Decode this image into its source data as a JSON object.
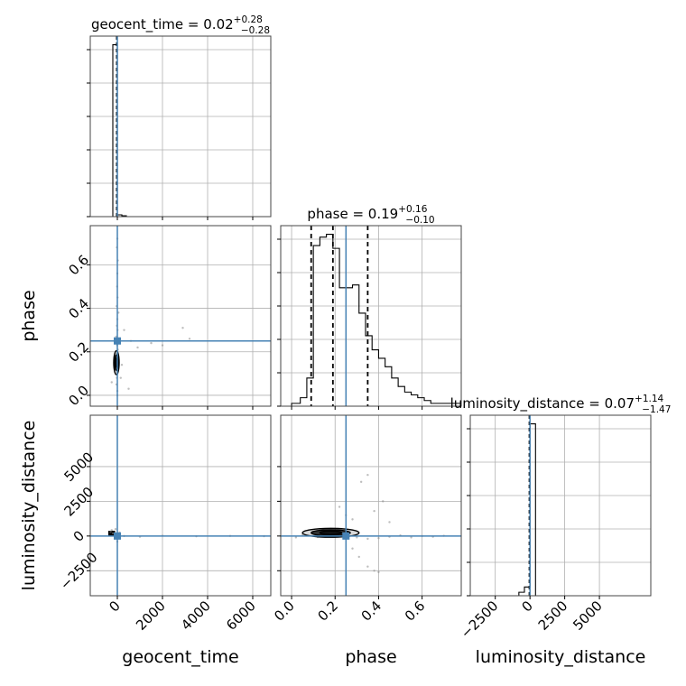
{
  "chart_data": {
    "type": "corner",
    "grid": true,
    "truth_color": "#4682b4",
    "histogram_color": "#000000",
    "parameters": [
      {
        "name": "geocent_time",
        "xlabel": "geocent_time",
        "title": {
          "main": "geocent_time = 0.02",
          "sup": "+0.28",
          "sub": "−0.28"
        },
        "truth": 0,
        "range": [
          -1200,
          6800
        ],
        "ticks": [
          0,
          2000,
          4000,
          6000
        ],
        "tick_labels": [
          "0",
          "2000",
          "4000",
          "6000"
        ]
      },
      {
        "name": "phase",
        "xlabel": "phase",
        "ylabel": "phase",
        "title": {
          "main": "phase = 0.19",
          "sup": "+0.16",
          "sub": "−0.10"
        },
        "truth": 0.25,
        "quantiles": [
          0.09,
          0.19,
          0.35
        ],
        "range": [
          -0.05,
          0.78
        ],
        "ticks": [
          0.0,
          0.2,
          0.4,
          0.6
        ],
        "tick_labels": [
          "0.0",
          "0.2",
          "0.4",
          "0.6"
        ]
      },
      {
        "name": "luminosity_distance",
        "xlabel": "luminosity_distance",
        "ylabel": "luminosity_distance",
        "title": {
          "main": "luminosity_distance = 0.07",
          "sup": "+1.14",
          "sub": "−1.47"
        },
        "truth": 0,
        "range": [
          -4300,
          8700
        ],
        "ticks": [
          -2500,
          0,
          2500,
          5000
        ],
        "tick_labels": [
          "−2500",
          "0",
          "2500",
          "5000"
        ]
      }
    ],
    "histograms": {
      "geocent_time": {
        "edges": [
          -400,
          -200,
          0,
          200,
          400
        ],
        "counts": [
          0,
          95,
          1,
          0.5
        ]
      },
      "phase": {
        "edges": [
          0.0,
          0.04,
          0.07,
          0.1,
          0.13,
          0.16,
          0.19,
          0.22,
          0.25,
          0.28,
          0.31,
          0.34,
          0.37,
          0.4,
          0.43,
          0.46,
          0.49,
          0.52,
          0.55,
          0.58,
          0.61,
          0.64,
          0.67,
          0.7,
          0.78
        ],
        "counts": [
          1,
          3,
          10,
          57,
          60,
          61,
          56,
          42,
          42,
          43,
          33,
          25,
          20,
          17,
          14,
          10,
          7,
          5,
          4,
          3,
          2,
          1,
          1,
          1
        ]
      },
      "luminosity_distance": {
        "edges": [
          -800,
          -400,
          0,
          400
        ],
        "counts": [
          2,
          5,
          98
        ]
      }
    },
    "samples": {
      "phase_vs_geocent_time": [
        [
          0,
          0.0
        ],
        [
          0,
          0.02
        ],
        [
          -40,
          0.05
        ],
        [
          -20,
          0.08
        ],
        [
          10,
          0.11
        ],
        [
          -60,
          0.13
        ],
        [
          40,
          0.15
        ],
        [
          0,
          0.17
        ],
        [
          -30,
          0.19
        ],
        [
          20,
          0.21
        ],
        [
          -10,
          0.23
        ],
        [
          30,
          0.25
        ],
        [
          -50,
          0.27
        ],
        [
          10,
          0.3
        ],
        [
          -20,
          0.32
        ],
        [
          0,
          0.35
        ],
        [
          50,
          0.38
        ],
        [
          -30,
          0.41
        ],
        [
          10,
          0.45
        ],
        [
          -10,
          0.5
        ],
        [
          0,
          0.56
        ],
        [
          20,
          0.62
        ],
        [
          -20,
          0.68
        ],
        [
          0,
          0.72
        ],
        [
          300,
          0.3
        ],
        [
          600,
          0.25
        ],
        [
          900,
          0.22
        ],
        [
          1500,
          0.24
        ],
        [
          2000,
          0.23
        ],
        [
          2900,
          0.31
        ],
        [
          3200,
          0.26
        ],
        [
          150,
          0.08
        ],
        [
          -250,
          0.06
        ],
        [
          200,
          0.14
        ],
        [
          500,
          0.03
        ]
      ],
      "luminosity_distance_vs_geocent_time": [
        [
          -300,
          300
        ],
        [
          -200,
          200
        ],
        [
          -100,
          100
        ],
        [
          0,
          50
        ],
        [
          60,
          -80
        ],
        [
          -40,
          -150
        ],
        [
          20,
          180
        ],
        [
          300,
          0
        ],
        [
          1000,
          -50
        ],
        [
          2000,
          20
        ],
        [
          3500,
          -20
        ],
        [
          5000,
          10
        ],
        [
          6500,
          -10
        ],
        [
          0,
          -400
        ],
        [
          -80,
          500
        ],
        [
          100,
          250
        ],
        [
          -250,
          420
        ]
      ],
      "luminosity_distance_vs_phase": [
        [
          0.1,
          300
        ],
        [
          0.15,
          200
        ],
        [
          0.2,
          100
        ],
        [
          0.25,
          0
        ],
        [
          0.3,
          -100
        ],
        [
          0.35,
          -200
        ],
        [
          0.4,
          -150
        ],
        [
          0.45,
          -50
        ],
        [
          0.5,
          50
        ],
        [
          0.55,
          -100
        ],
        [
          0.6,
          0
        ],
        [
          0.65,
          -50
        ],
        [
          0.7,
          20
        ],
        [
          0.22,
          2100
        ],
        [
          0.25,
          1500
        ],
        [
          0.28,
          1200
        ],
        [
          0.32,
          3900
        ],
        [
          0.35,
          4400
        ],
        [
          0.38,
          1800
        ],
        [
          0.31,
          -1500
        ],
        [
          0.38,
          -2500
        ],
        [
          0.4,
          -2600
        ],
        [
          0.35,
          -2200
        ],
        [
          0.05,
          100
        ],
        [
          0.02,
          -100
        ],
        [
          0.12,
          -80
        ],
        [
          0.18,
          150
        ],
        [
          0.42,
          2500
        ],
        [
          0.28,
          -900
        ],
        [
          0.45,
          1000
        ]
      ]
    },
    "contours": {
      "phase_vs_geocent_time": {
        "center": [
          -40,
          0.15
        ],
        "levels": [
          [
            120,
            0.055
          ],
          [
            80,
            0.035
          ],
          [
            45,
            0.02
          ]
        ]
      },
      "luminosity_distance_vs_phase": {
        "center": [
          0.18,
          230
        ],
        "levels": [
          [
            0.13,
            320
          ],
          [
            0.09,
            220
          ],
          [
            0.05,
            130
          ]
        ]
      }
    },
    "density_block": {
      "luminosity_distance_vs_geocent_time": {
        "x": [
          -400,
          -100
        ],
        "y": [
          0,
          380
        ]
      }
    }
  }
}
